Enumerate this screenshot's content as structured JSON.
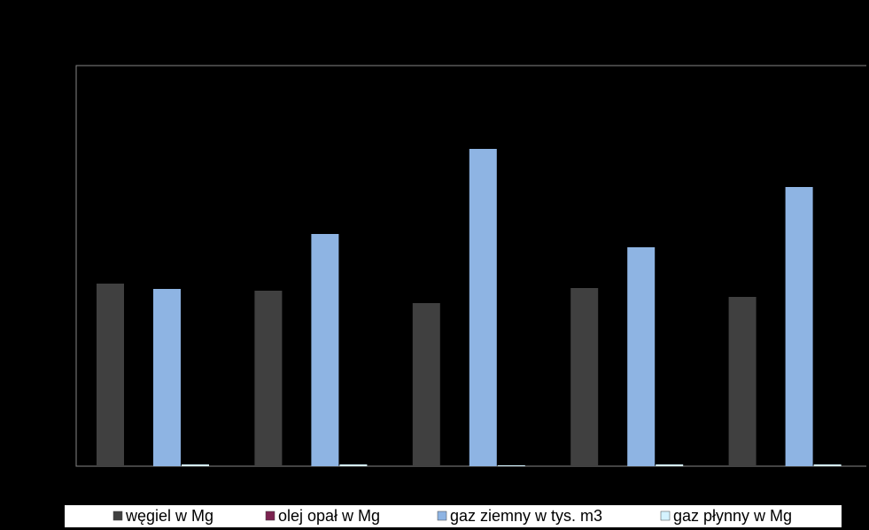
{
  "chart_data": {
    "type": "bar",
    "categories": [
      null,
      null,
      null,
      null,
      null
    ],
    "series": [
      {
        "name": "węgiel w Mg",
        "color": "#404040",
        "values": [
          206,
          198,
          184,
          201,
          191
        ]
      },
      {
        "name": "olej opał w Mg",
        "color": "#7b2350",
        "values": [
          0,
          0,
          0,
          0,
          0
        ]
      },
      {
        "name": "gaz ziemny w tys. m3",
        "color": "#8eb4e3",
        "values": [
          200,
          262,
          358,
          247,
          315
        ]
      },
      {
        "name": "gaz płynny w Mg",
        "color": "#d5f3ff",
        "values": [
          2,
          2,
          1,
          2,
          2
        ]
      }
    ],
    "ylim": [
      0,
      452
    ]
  }
}
